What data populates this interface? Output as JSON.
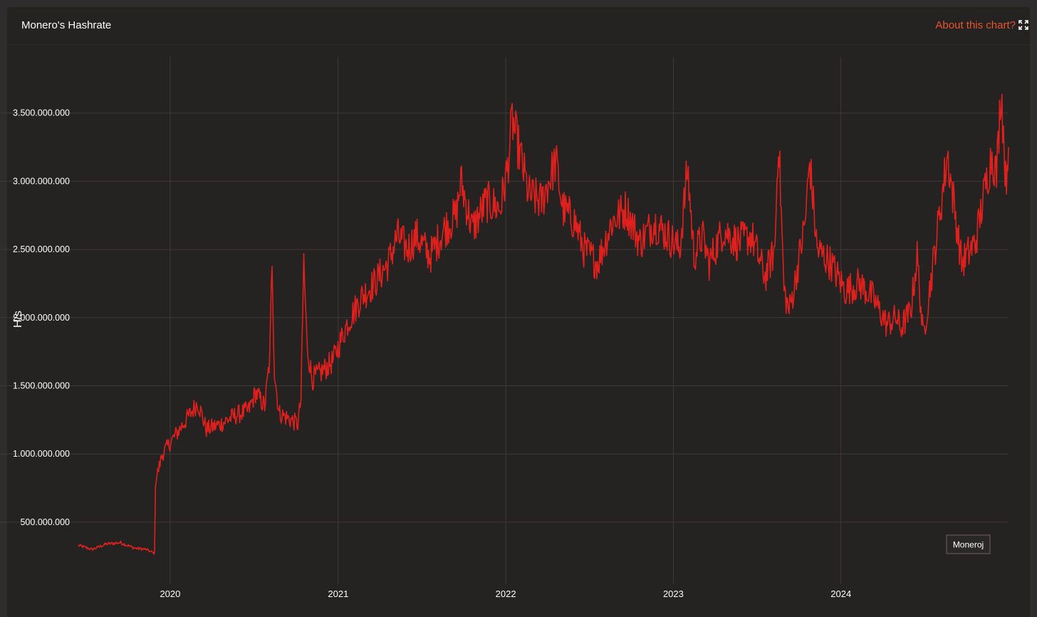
{
  "panel": {
    "title": "Monero's Hashrate",
    "about_label": "About this chart?",
    "expand_icon": "expand-icon"
  },
  "watermark": "Moneroj",
  "colors": {
    "background": "#252222",
    "line": "#e0201c",
    "grid": "#3d3a3a",
    "accent": "#e8542c"
  },
  "chart_data": {
    "type": "line",
    "title": "Monero's Hashrate",
    "xlabel": "",
    "ylabel": "H/s",
    "xlim": [
      "2019-06-15",
      "2024-12-31"
    ],
    "ylim": [
      0,
      3900000000
    ],
    "yticks": [
      {
        "value": 500000000,
        "label": "500.000.000"
      },
      {
        "value": 1000000000,
        "label": "1.000.000.000"
      },
      {
        "value": 1500000000,
        "label": "1.500.000.000"
      },
      {
        "value": 2000000000,
        "label": "2.000.000.000"
      },
      {
        "value": 2500000000,
        "label": "2.500.000.000"
      },
      {
        "value": 3000000000,
        "label": "3.000.000.000"
      },
      {
        "value": 3500000000,
        "label": "3.500.000.000"
      }
    ],
    "xticks": [
      {
        "value": "2020-01-01",
        "label": "2020"
      },
      {
        "value": "2021-01-01",
        "label": "2021"
      },
      {
        "value": "2022-01-01",
        "label": "2022"
      },
      {
        "value": "2023-01-01",
        "label": "2023"
      },
      {
        "value": "2024-01-01",
        "label": "2024"
      }
    ],
    "grid": true,
    "legend": "none",
    "series": [
      {
        "x": [
          "2019-06-15",
          "2019-07-15",
          "2019-08-15",
          "2019-09-15",
          "2019-10-15",
          "2019-11-10",
          "2019-11-28",
          "2019-11-30",
          "2019-12-15",
          "2020-01-15",
          "2020-02-15",
          "2020-03-01",
          "2020-03-20",
          "2020-04-20",
          "2020-05-20",
          "2020-06-20",
          "2020-07-05",
          "2020-07-25",
          "2020-08-05",
          "2020-08-10",
          "2020-08-15",
          "2020-08-25",
          "2020-09-20",
          "2020-10-05",
          "2020-10-12",
          "2020-10-18",
          "2020-10-25",
          "2020-11-05",
          "2020-11-25",
          "2020-12-20",
          "2021-01-20",
          "2021-02-20",
          "2021-03-20",
          "2021-04-20",
          "2021-05-10",
          "2021-06-01",
          "2021-06-20",
          "2021-07-20",
          "2021-08-20",
          "2021-09-15",
          "2021-09-25",
          "2021-10-20",
          "2021-11-20",
          "2021-12-20",
          "2022-01-05",
          "2022-01-15",
          "2022-02-01",
          "2022-02-20",
          "2022-03-20",
          "2022-04-20",
          "2022-05-05",
          "2022-06-01",
          "2022-06-20",
          "2022-07-20",
          "2022-08-20",
          "2022-09-20",
          "2022-10-20",
          "2022-11-20",
          "2022-12-20",
          "2023-01-15",
          "2023-02-01",
          "2023-02-15",
          "2023-03-05",
          "2023-03-20",
          "2023-04-20",
          "2023-05-20",
          "2023-06-20",
          "2023-07-20",
          "2023-08-10",
          "2023-08-18",
          "2023-08-30",
          "2023-09-10",
          "2023-09-20",
          "2023-10-15",
          "2023-10-25",
          "2023-11-10",
          "2023-12-10",
          "2024-01-10",
          "2024-02-10",
          "2024-03-10",
          "2024-04-10",
          "2024-05-01",
          "2024-05-10",
          "2024-06-01",
          "2024-06-15",
          "2024-06-28",
          "2024-07-20",
          "2024-08-20",
          "2024-09-20",
          "2024-10-20",
          "2024-11-10",
          "2024-11-25",
          "2024-12-05",
          "2024-12-15",
          "2024-12-25",
          "2024-12-31"
        ],
        "y": [
          330000000,
          300000000,
          340000000,
          350000000,
          310000000,
          300000000,
          270000000,
          800000000,
          1000000000,
          1150000000,
          1300000000,
          1380000000,
          1180000000,
          1220000000,
          1280000000,
          1320000000,
          1450000000,
          1350000000,
          1700000000,
          2450000000,
          1600000000,
          1300000000,
          1250000000,
          1220000000,
          1400000000,
          2420000000,
          1800000000,
          1550000000,
          1600000000,
          1680000000,
          1950000000,
          2150000000,
          2250000000,
          2400000000,
          2600000000,
          2500000000,
          2600000000,
          2450000000,
          2650000000,
          2750000000,
          3000000000,
          2650000000,
          2850000000,
          2800000000,
          3100000000,
          3450000000,
          3200000000,
          2900000000,
          2850000000,
          3150000000,
          2800000000,
          2700000000,
          2500000000,
          2400000000,
          2700000000,
          2800000000,
          2550000000,
          2700000000,
          2600000000,
          2500000000,
          3100000000,
          2450000000,
          2600000000,
          2400000000,
          2650000000,
          2550000000,
          2600000000,
          2300000000,
          2500000000,
          3350000000,
          2200000000,
          2050000000,
          2200000000,
          2700000000,
          3150000000,
          2500000000,
          2400000000,
          2200000000,
          2250000000,
          2150000000,
          1950000000,
          2000000000,
          1920000000,
          2050000000,
          2450000000,
          1850000000,
          2400000000,
          3200000000,
          2400000000,
          2550000000,
          2950000000,
          3200000000,
          3050000000,
          3700000000,
          3000000000,
          3250000000
        ]
      }
    ]
  }
}
